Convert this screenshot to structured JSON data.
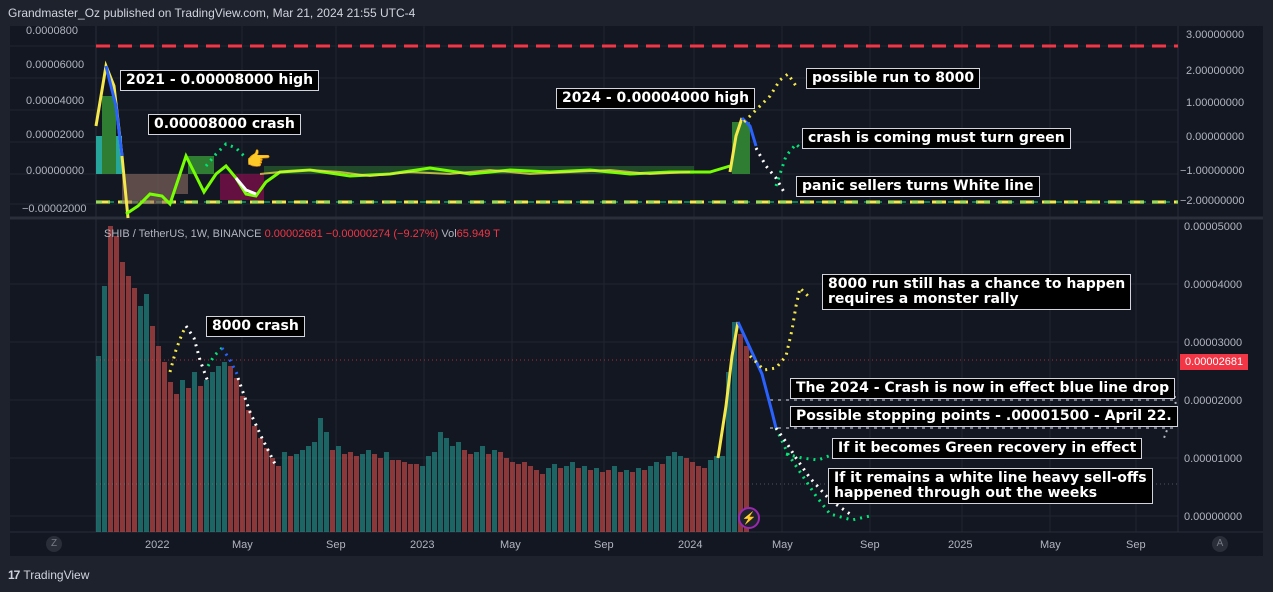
{
  "header": {
    "text": "Grandmaster_Oz published on TradingView.com, Mar 21, 2024 21:55 UTC-4"
  },
  "ticker": {
    "symbol": "SHIB / TetherUS, 1W, BINANCE",
    "price": "0.00002681",
    "change": "−0.00000274 (−9.27%)",
    "vol_label": "Vol",
    "vol": "65.949 T"
  },
  "price_tag": "0.00002681",
  "upper_left_axis": [
    "0.0000800",
    "0.00006000",
    "0.00004000",
    "0.00002000",
    "0.00000000",
    "−0.00002000"
  ],
  "upper_right_axis": [
    "3.00000000",
    "2.00000000",
    "1.00000000",
    "0.00000000",
    "−1.00000000",
    "−2.00000000"
  ],
  "lower_right_axis": [
    "0.00005000",
    "0.00004000",
    "0.00003000",
    "0.00002000",
    "0.00001000",
    "0.00000000"
  ],
  "time_axis": [
    "2022",
    "May",
    "Sep",
    "2023",
    "May",
    "Sep",
    "2024",
    "May",
    "Sep",
    "2025",
    "May",
    "Sep"
  ],
  "notes": {
    "high_2021": "2021 - 0.00008000 high",
    "crash_8000": "0.00008000 crash",
    "high_2024": "2024 - 0.00004000 high",
    "run_8000": "possible run to 8000",
    "must_green": "crash is coming must turn green",
    "panic": "panic sellers turns White line",
    "crash_label": "8000 crash",
    "monster": "8000 run still has a chance to happen\nrequires a monster rally",
    "crash_2024": "The 2024 - Crash is now in effect blue line drop",
    "stopping": "Possible stopping points - .00001500 - April 22.",
    "green_recovery": "If it becomes Green recovery in effect",
    "white_line": "If it remains a white line heavy sell-offs\nhappened through out the weeks"
  },
  "footer": {
    "brand": "TradingView",
    "logo": "17"
  },
  "colors": {
    "bull": "#26a69a",
    "bear": "#ef5350",
    "bg": "#131722",
    "accent_red": "#f23645"
  }
}
